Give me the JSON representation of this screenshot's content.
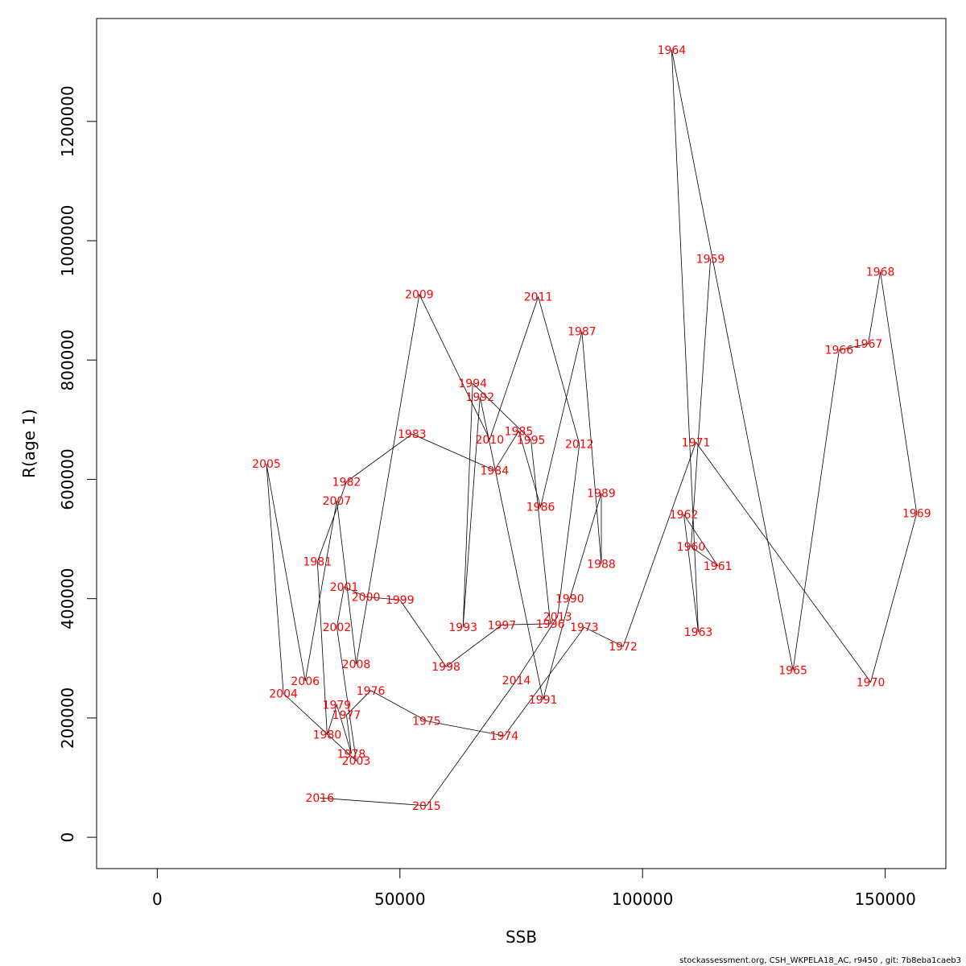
{
  "chart_data": {
    "type": "scatter",
    "connected": true,
    "xlabel": "SSB",
    "ylabel": "R(age 1)",
    "xlim": [
      -12500,
      162500
    ],
    "ylim": [
      -52500,
      1372500
    ],
    "xticks": [
      0,
      50000,
      100000,
      150000
    ],
    "yticks": [
      0,
      200000,
      400000,
      600000,
      800000,
      1000000,
      1200000
    ],
    "xtick_labels": [
      "0",
      "50000",
      "100000",
      "150000"
    ],
    "ytick_labels": [
      "0",
      "200000",
      "400000",
      "600000",
      "800000",
      "1000000",
      "1200000"
    ],
    "point_label_color": "#ff0000",
    "line_color": "#000000",
    "grid": false,
    "points": [
      {
        "year": "1959",
        "x": 114000,
        "y": 970000
      },
      {
        "year": "1960",
        "x": 110000,
        "y": 487000
      },
      {
        "year": "1961",
        "x": 115500,
        "y": 455000
      },
      {
        "year": "1962",
        "x": 108500,
        "y": 541000
      },
      {
        "year": "1963",
        "x": 111500,
        "y": 344000
      },
      {
        "year": "1964",
        "x": 106000,
        "y": 1320000
      },
      {
        "year": "1965",
        "x": 131000,
        "y": 280000
      },
      {
        "year": "1966",
        "x": 140500,
        "y": 817000
      },
      {
        "year": "1967",
        "x": 146500,
        "y": 827000
      },
      {
        "year": "1968",
        "x": 149000,
        "y": 948000
      },
      {
        "year": "1969",
        "x": 156500,
        "y": 543000
      },
      {
        "year": "1970",
        "x": 147000,
        "y": 260000
      },
      {
        "year": "1971",
        "x": 111000,
        "y": 662000
      },
      {
        "year": "1972",
        "x": 96000,
        "y": 320000
      },
      {
        "year": "1973",
        "x": 88000,
        "y": 352000
      },
      {
        "year": "1974",
        "x": 71500,
        "y": 170000
      },
      {
        "year": "1975",
        "x": 55500,
        "y": 195000
      },
      {
        "year": "1976",
        "x": 44000,
        "y": 246000
      },
      {
        "year": "1977",
        "x": 39000,
        "y": 205000
      },
      {
        "year": "1978",
        "x": 40000,
        "y": 140000
      },
      {
        "year": "1979",
        "x": 37000,
        "y": 222000
      },
      {
        "year": "1980",
        "x": 35000,
        "y": 172000
      },
      {
        "year": "1981",
        "x": 33000,
        "y": 462000
      },
      {
        "year": "1982",
        "x": 39000,
        "y": 596000
      },
      {
        "year": "1983",
        "x": 52500,
        "y": 676000
      },
      {
        "year": "1984",
        "x": 69500,
        "y": 615000
      },
      {
        "year": "1985",
        "x": 74500,
        "y": 681000
      },
      {
        "year": "1986",
        "x": 79000,
        "y": 554000
      },
      {
        "year": "1987",
        "x": 87500,
        "y": 848000
      },
      {
        "year": "1988",
        "x": 91500,
        "y": 458000
      },
      {
        "year": "1989",
        "x": 91500,
        "y": 577000
      },
      {
        "year": "1990",
        "x": 85000,
        "y": 400000
      },
      {
        "year": "1991",
        "x": 79500,
        "y": 231000
      },
      {
        "year": "1992",
        "x": 66500,
        "y": 738000
      },
      {
        "year": "1993",
        "x": 63000,
        "y": 352000
      },
      {
        "year": "1994",
        "x": 65000,
        "y": 761000
      },
      {
        "year": "1995",
        "x": 77000,
        "y": 666000
      },
      {
        "year": "1996",
        "x": 81000,
        "y": 358000
      },
      {
        "year": "1997",
        "x": 71000,
        "y": 356000
      },
      {
        "year": "1998",
        "x": 59500,
        "y": 286000
      },
      {
        "year": "1999",
        "x": 50000,
        "y": 398000
      },
      {
        "year": "2000",
        "x": 43000,
        "y": 403000
      },
      {
        "year": "2001",
        "x": 38500,
        "y": 420000
      },
      {
        "year": "2002",
        "x": 37000,
        "y": 352000
      },
      {
        "year": "2003",
        "x": 41000,
        "y": 128000
      },
      {
        "year": "2004",
        "x": 26000,
        "y": 241000
      },
      {
        "year": "2005",
        "x": 22500,
        "y": 626000
      },
      {
        "year": "2006",
        "x": 30500,
        "y": 262000
      },
      {
        "year": "2007",
        "x": 37000,
        "y": 564000
      },
      {
        "year": "2008",
        "x": 41000,
        "y": 290000
      },
      {
        "year": "2009",
        "x": 54000,
        "y": 910000
      },
      {
        "year": "2010",
        "x": 68500,
        "y": 667000
      },
      {
        "year": "2011",
        "x": 78500,
        "y": 906000
      },
      {
        "year": "2012",
        "x": 87000,
        "y": 659000
      },
      {
        "year": "2013",
        "x": 82500,
        "y": 370000
      },
      {
        "year": "2014",
        "x": 74000,
        "y": 263000
      },
      {
        "year": "2015",
        "x": 55500,
        "y": 53000
      },
      {
        "year": "2016",
        "x": 33500,
        "y": 66000
      }
    ]
  },
  "footer": "stockassessment.org, CSH_WKPELA18_AC, r9450 , git: 7b8eba1caeb3"
}
